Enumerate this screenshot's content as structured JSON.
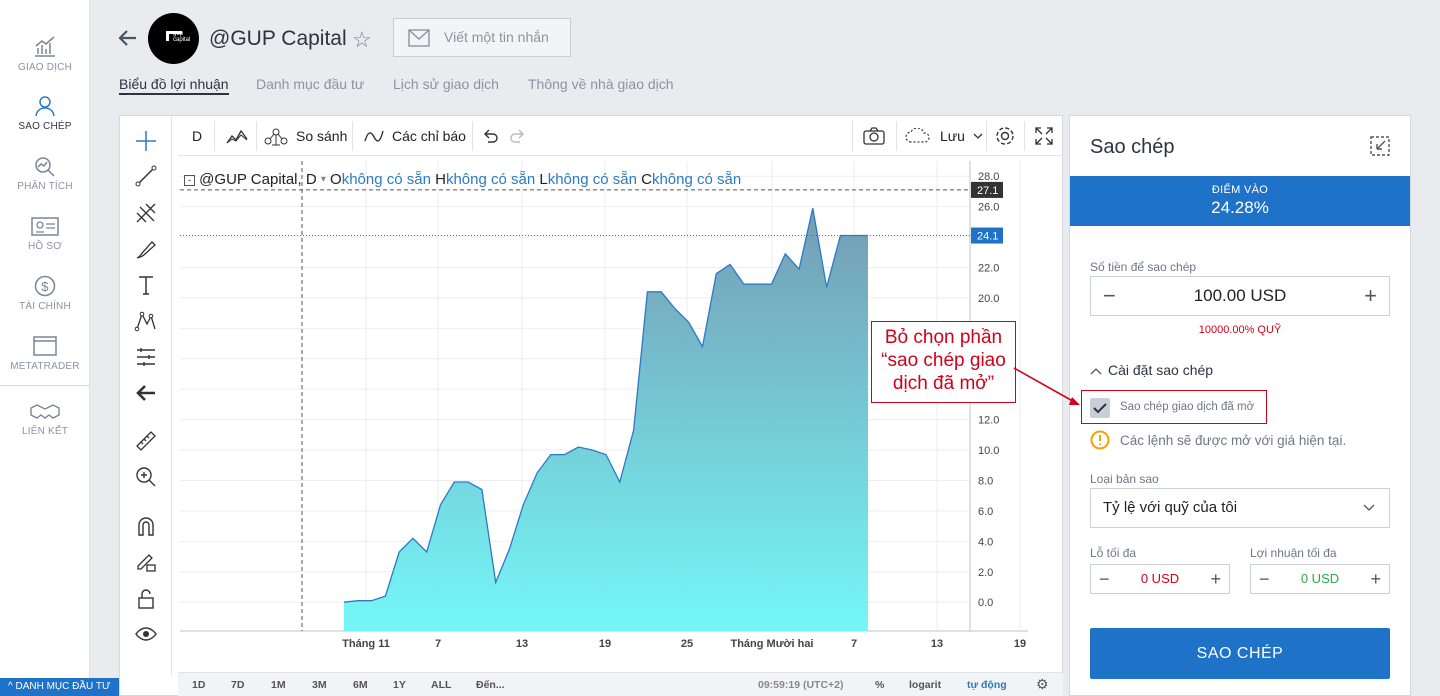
{
  "nav": [
    {
      "label": "GIAO DỊCH",
      "icon": "trade-chart-icon"
    },
    {
      "label": "SAO CHÉP",
      "icon": "copy-user-icon"
    },
    {
      "label": "PHÂN TÍCH",
      "icon": "analysis-icon"
    },
    {
      "label": "HỒ SƠ",
      "icon": "profile-card-icon"
    },
    {
      "label": "TÀI CHÍNH",
      "icon": "dollar-icon"
    },
    {
      "label": "METATRADER",
      "icon": "window-icon"
    },
    {
      "label": "LIÊN KẾT",
      "icon": "handshake-icon"
    }
  ],
  "bottom_bar": "DANH MỤC ĐẦU TƯ",
  "header": {
    "title": "@GUP Capital",
    "message_placeholder": "Viết một tin nhắn"
  },
  "tabs": [
    "Biểu đồ lợi nhuận",
    "Danh mục đầu tư",
    "Lịch sử giao dịch",
    "Thông về nhà giao dịch"
  ],
  "toolbar": {
    "interval": "D",
    "compare": "So sánh",
    "indicators": "Các chỉ báo",
    "save": "Lưu"
  },
  "legend": {
    "symbol": "@GUP Capital, D",
    "o": "O",
    "h": "H",
    "l": "L",
    "c": "C",
    "na": "không có sẵn"
  },
  "bottom": {
    "ranges": [
      "1D",
      "7D",
      "1M",
      "3M",
      "6M",
      "1Y",
      "ALL",
      "Đến..."
    ],
    "time": "09:59:19 (UTC+2)",
    "pct": "%",
    "log": "logarit",
    "auto": "tự động"
  },
  "chart_data": {
    "type": "area",
    "ylim": [
      -1.5,
      29
    ],
    "x_ticks": [
      "Tháng 11",
      "7",
      "13",
      "19",
      "25",
      "Tháng Mười hai",
      "7",
      "13",
      "19"
    ],
    "y_ticks": [
      "0.0",
      "2.0",
      "4.0",
      "6.0",
      "8.0",
      "10.0",
      "12.0",
      "14.0",
      "16.0",
      "18.0",
      "20.0",
      "22.0",
      "24.0",
      "26.0",
      "28.0"
    ],
    "last_value_label": "24.1",
    "crosshair_label": "27.1",
    "values": [
      0,
      0.1,
      0.1,
      0.4,
      3.3,
      4.2,
      3.3,
      6.4,
      7.9,
      7.9,
      7.4,
      1.3,
      3.5,
      6.4,
      8.5,
      9.7,
      9.7,
      10.2,
      10.0,
      9.7,
      7.9,
      11.3,
      20.4,
      20.4,
      19.3,
      18.4,
      16.8,
      21.6,
      22.2,
      20.9,
      20.9,
      20.9,
      22.9,
      21.9,
      25.9,
      20.7,
      24.1,
      24.1,
      24.1
    ]
  },
  "panel": {
    "title": "Sao chép",
    "entry_label": "ĐIỂM VÀO",
    "entry_value": "24.28%",
    "amount_label": "Số tiền để sao chép",
    "amount": "100.00 USD",
    "fund_pct": "10000.00% QUỸ",
    "settings": "Cài đặt sao chép",
    "copy_open_label": "Sao chép giao dịch đã mở",
    "warning": "Các lệnh sẽ được mở với giá hiện tại.",
    "copy_type_label": "Loại bản sao",
    "copy_type": "Tỷ lệ với quỹ của tôi",
    "max_loss_label": "Lỗ tối đa",
    "max_loss": "0 USD",
    "max_profit_label": "Lợi nhuận tối đa",
    "max_profit": "0 USD",
    "copy_button": "SAO CHÉP"
  },
  "annotation": "Bỏ chọn phần “sao chép giao dịch đã mở”",
  "colors": {
    "accent": "#1e73c8",
    "area_top": "#6e97b0",
    "area_bottom": "#6ef7f7",
    "annotation": "#d0021b"
  }
}
